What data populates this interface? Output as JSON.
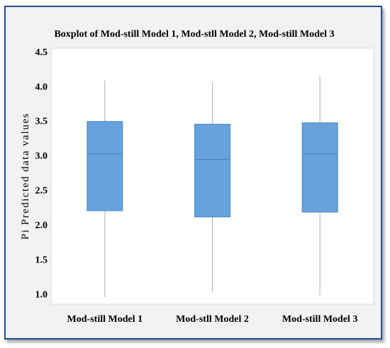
{
  "chart_data": {
    "type": "boxplot",
    "title": "Boxplot of Mod-still Model 1, Mod-stll Model 2, Mod-still Model 3",
    "xlabel": "",
    "ylabel": "Pi Predicted data values",
    "ylim": [
      0.85,
      4.55
    ],
    "yticks": [
      "1.0",
      "1.5",
      "2.0",
      "2.5",
      "3.0",
      "3.5",
      "4.0",
      "4.5"
    ],
    "grid": false,
    "colors": {
      "box_fill": "#66a3dc",
      "box_stroke": "#4a86c0",
      "whisker": "#b0b0b0",
      "plot_bg": "#ffffff",
      "frame_bg": "#f2f2f2",
      "border": "#1f4e9c"
    },
    "categories": [
      "Mod-still Model 1",
      "Mod-stll Model 2",
      "Mod-still Model 3"
    ],
    "boxes": [
      {
        "min": 0.95,
        "q1": 2.2,
        "median": 3.02,
        "q3": 3.49,
        "max": 4.08
      },
      {
        "min": 1.03,
        "q1": 2.11,
        "median": 2.94,
        "q3": 3.45,
        "max": 4.06
      },
      {
        "min": 0.98,
        "q1": 2.18,
        "median": 3.02,
        "q3": 3.47,
        "max": 4.15
      }
    ]
  }
}
